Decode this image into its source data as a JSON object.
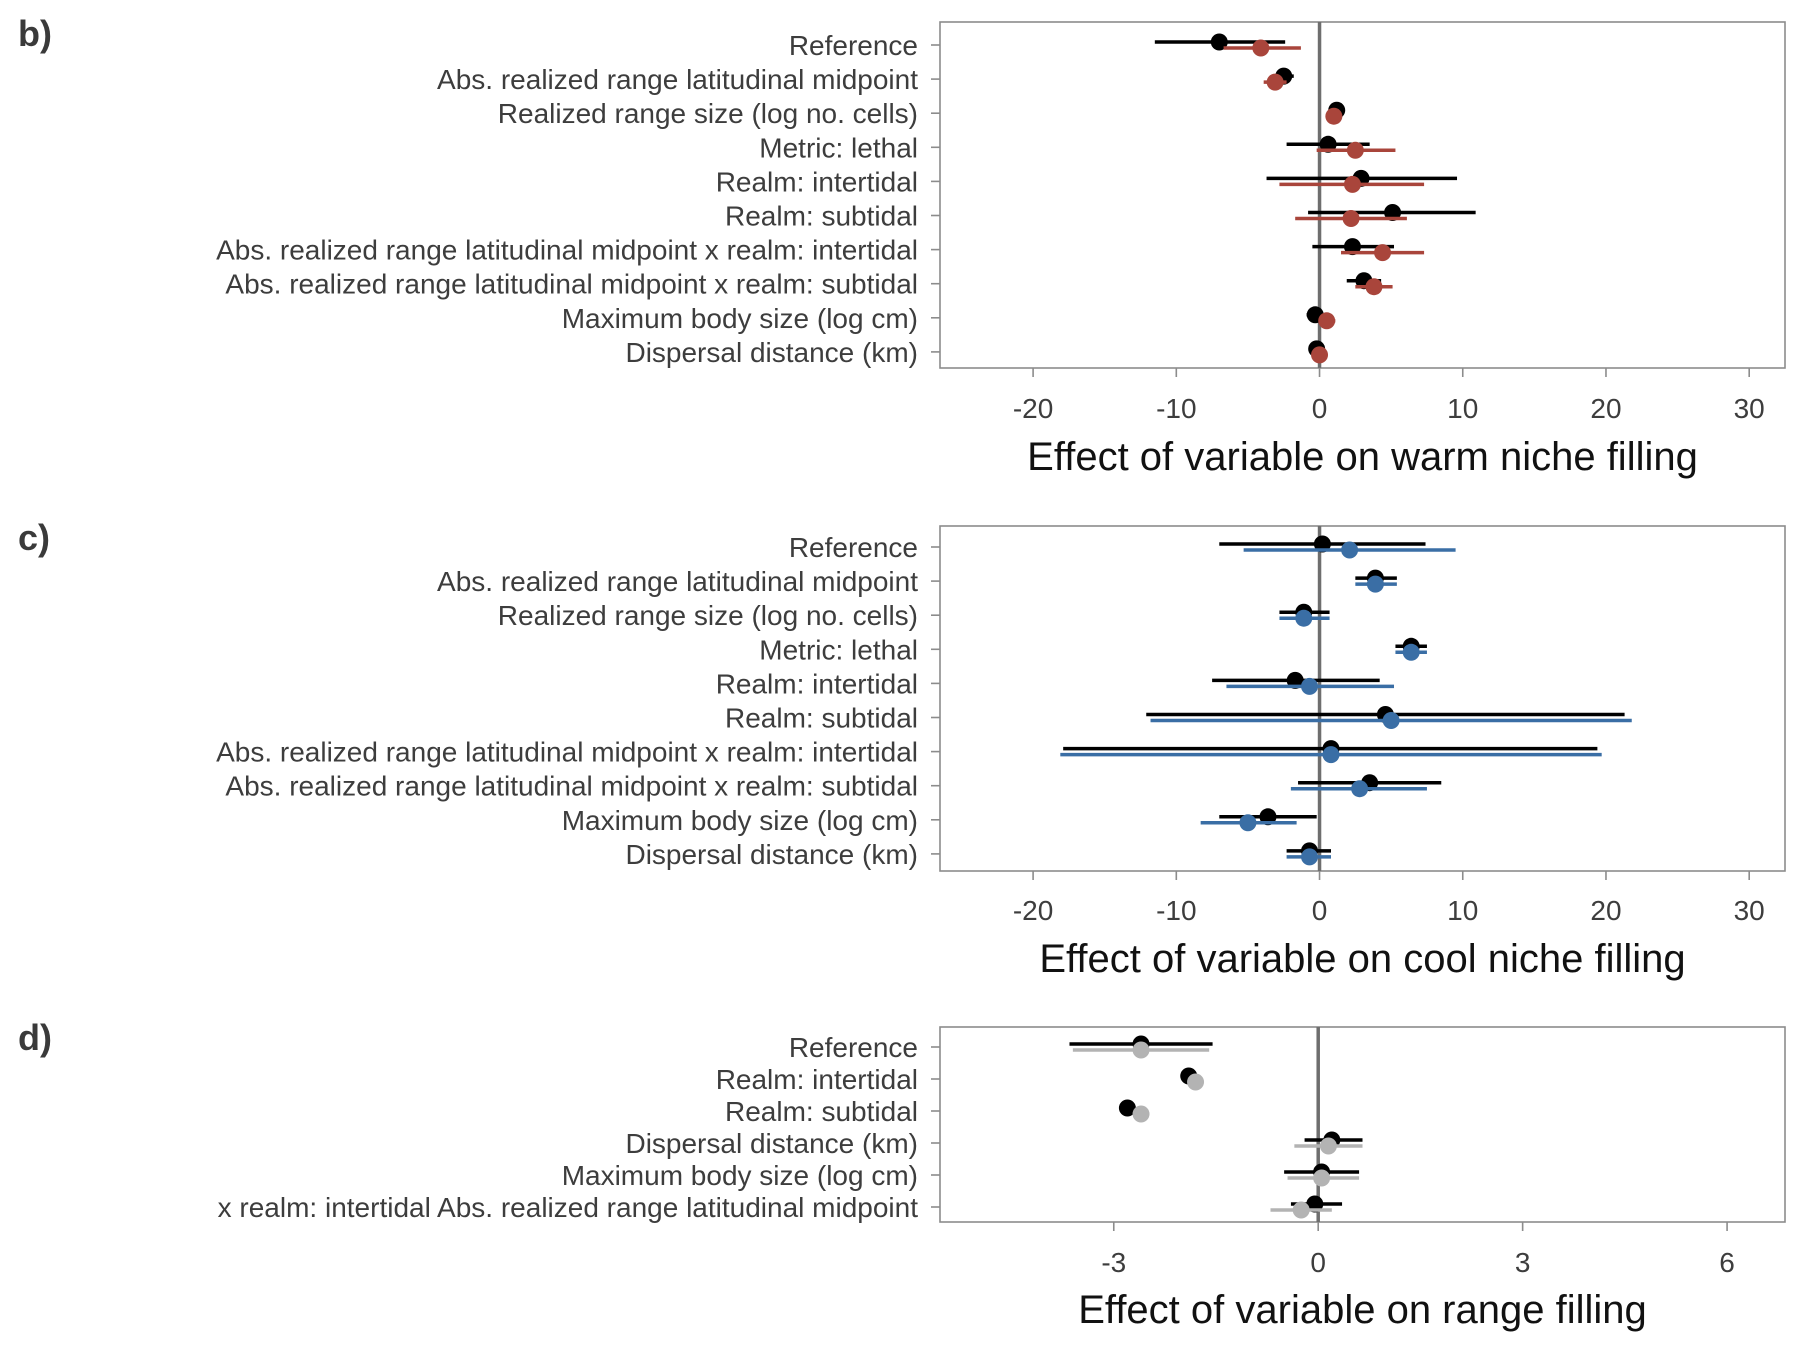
{
  "chart_data": [
    {
      "type": "forest",
      "panel_label": "b)",
      "xlabel": "Effect of variable on warm niche filling",
      "xlim": [
        -26.5,
        32.5
      ],
      "xticks": [
        -20,
        -10,
        0,
        10,
        20,
        30
      ],
      "tick_labels": [
        "-20",
        "-10",
        "0",
        "10",
        "20",
        "30"
      ],
      "reference_line": 0,
      "categories": [
        "Reference",
        "Abs. realized range latitudinal midpoint",
        "Realized range size (log no. cells)",
        "Metric: lethal",
        "Realm: intertidal",
        "Realm: subtidal",
        "Abs. realized range latitudinal midpoint x realm: intertidal",
        "Abs. realized range latitudinal midpoint x realm: subtidal",
        "Maximum body size (log cm)",
        "Dispersal distance (km)"
      ],
      "series": [
        {
          "color": "#000000",
          "estimate": [
            -7.0,
            -2.5,
            1.2,
            0.6,
            2.9,
            5.1,
            2.3,
            3.1,
            -0.3,
            -0.2
          ],
          "lower": [
            -11.5,
            -3.2,
            0.9,
            -2.3,
            -3.7,
            -0.8,
            -0.5,
            1.9,
            -0.9,
            -0.5
          ],
          "upper": [
            -2.4,
            -1.8,
            1.5,
            3.5,
            9.6,
            10.9,
            5.2,
            4.3,
            0.3,
            0.2
          ]
        },
        {
          "color": "#A9453B",
          "estimate": [
            -4.1,
            -3.1,
            1.0,
            2.5,
            2.3,
            2.2,
            4.4,
            3.8,
            0.5,
            0.0
          ],
          "lower": [
            -6.7,
            -3.9,
            0.7,
            -0.2,
            -2.8,
            -1.7,
            1.5,
            2.5,
            0.0,
            -0.3
          ],
          "upper": [
            -1.3,
            -2.3,
            1.3,
            5.3,
            7.3,
            6.1,
            7.3,
            5.1,
            1.1,
            0.3
          ]
        }
      ]
    },
    {
      "type": "forest",
      "panel_label": "c)",
      "xlabel": "Effect of variable on cool niche filling",
      "xlim": [
        -26.5,
        32.5
      ],
      "xticks": [
        -20,
        -10,
        0,
        10,
        20,
        30
      ],
      "tick_labels": [
        "-20",
        "-10",
        "0",
        "10",
        "20",
        "30"
      ],
      "reference_line": 0,
      "categories": [
        "Reference",
        "Abs. realized range latitudinal midpoint",
        "Realized range size (log no. cells)",
        "Metric: lethal",
        "Realm: intertidal",
        "Realm: subtidal",
        "Abs. realized range latitudinal midpoint x realm: intertidal",
        "Abs. realized range latitudinal midpoint x realm: subtidal",
        "Maximum body size (log cm)",
        "Dispersal distance (km)"
      ],
      "series": [
        {
          "color": "#000000",
          "estimate": [
            0.2,
            3.9,
            -1.1,
            6.4,
            -1.7,
            4.6,
            0.8,
            3.5,
            -3.6,
            -0.7
          ],
          "lower": [
            -7.0,
            2.5,
            -2.8,
            5.3,
            -7.5,
            -12.1,
            -17.9,
            -1.5,
            -7.0,
            -2.3
          ],
          "upper": [
            7.4,
            5.4,
            0.7,
            7.5,
            4.2,
            21.3,
            19.4,
            8.5,
            -0.2,
            0.8
          ]
        },
        {
          "color": "#3A6EA5",
          "estimate": [
            2.1,
            3.9,
            -1.1,
            6.4,
            -0.7,
            5.0,
            0.8,
            2.8,
            -5.0,
            -0.7
          ],
          "lower": [
            -5.3,
            2.5,
            -2.8,
            5.3,
            -6.5,
            -11.8,
            -18.1,
            -2.0,
            -8.3,
            -2.3
          ],
          "upper": [
            9.5,
            5.4,
            0.7,
            7.5,
            5.2,
            21.8,
            19.7,
            7.5,
            -1.6,
            0.8
          ]
        }
      ]
    },
    {
      "type": "forest",
      "panel_label": "d)",
      "xlabel": "Effect of variable on range filling",
      "xlim": [
        -5.55,
        6.85
      ],
      "xticks": [
        -3,
        0,
        3,
        6
      ],
      "tick_labels": [
        "-3",
        "0",
        "3",
        "6"
      ],
      "reference_line": 0,
      "categories": [
        "Reference",
        "Realm: intertidal",
        "Realm: subtidal",
        "Dispersal distance (km)",
        "Maximum body size (log cm)",
        "x realm: intertidal Abs. realized range latitudinal midpoint"
      ],
      "series": [
        {
          "color": "#000000",
          "estimate": [
            -2.6,
            -1.9,
            -2.8,
            0.2,
            0.05,
            -0.05
          ],
          "lower": [
            -3.65,
            -1.9,
            -2.8,
            -0.2,
            -0.5,
            -0.4
          ],
          "upper": [
            -1.55,
            -1.9,
            -2.8,
            0.65,
            0.6,
            0.35
          ]
        },
        {
          "color": "#B3B3B3",
          "estimate": [
            -2.6,
            -1.8,
            -2.6,
            0.15,
            0.05,
            -0.25
          ],
          "lower": [
            -3.6,
            -1.8,
            -2.6,
            -0.35,
            -0.45,
            -0.7
          ],
          "upper": [
            -1.6,
            -1.8,
            -2.6,
            0.65,
            0.6,
            0.2
          ]
        }
      ]
    }
  ]
}
